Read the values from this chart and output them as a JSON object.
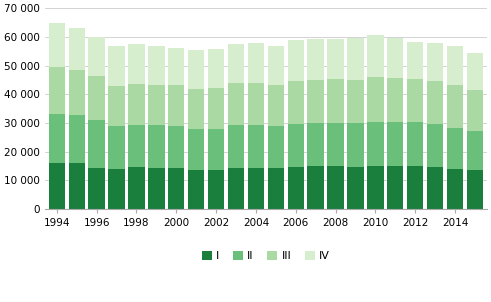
{
  "years": [
    1994,
    1995,
    1996,
    1997,
    1998,
    1999,
    2000,
    2001,
    2002,
    2003,
    2004,
    2005,
    2006,
    2007,
    2008,
    2009,
    2010,
    2011,
    2012,
    2013,
    2014,
    2015
  ],
  "Q1": [
    16100,
    16000,
    14200,
    13900,
    14500,
    14300,
    14100,
    13500,
    13600,
    14300,
    14400,
    14100,
    14700,
    14800,
    14800,
    14700,
    15000,
    14900,
    14900,
    14700,
    14000,
    13500
  ],
  "Q2": [
    17000,
    16600,
    16700,
    15000,
    14900,
    14900,
    14900,
    14500,
    14200,
    14900,
    14900,
    14700,
    15000,
    15100,
    15200,
    15200,
    15400,
    15300,
    15300,
    15000,
    14300,
    13800
  ],
  "Q3": [
    16500,
    16000,
    15400,
    14000,
    14100,
    14100,
    14100,
    13800,
    14300,
    14700,
    14500,
    14400,
    15000,
    15000,
    15400,
    15200,
    15600,
    15300,
    15000,
    14900,
    14900,
    14000
  ],
  "Q4": [
    15100,
    14600,
    13800,
    14000,
    14000,
    13600,
    13000,
    13500,
    13800,
    13700,
    13900,
    13700,
    14200,
    14200,
    13900,
    14400,
    14800,
    14200,
    13000,
    13200,
    13600,
    13000
  ],
  "colors": [
    "#1a7f3c",
    "#6abf7b",
    "#aad9a3",
    "#d6eece"
  ],
  "ylim": [
    0,
    70000
  ],
  "yticks": [
    0,
    10000,
    20000,
    30000,
    40000,
    50000,
    60000,
    70000
  ],
  "background_color": "#ffffff",
  "grid_color": "#cccccc",
  "legend_labels": [
    "I",
    "II",
    "III",
    "IV"
  ],
  "tick_years": [
    1994,
    1996,
    1998,
    2000,
    2002,
    2004,
    2006,
    2008,
    2010,
    2012,
    2014
  ]
}
